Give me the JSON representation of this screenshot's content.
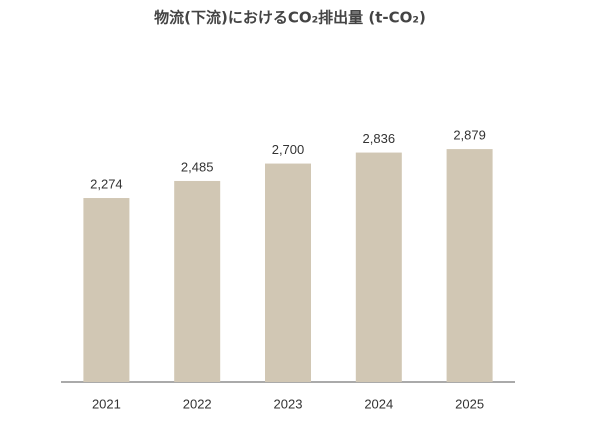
{
  "chart_data": {
    "type": "bar",
    "title": "物流(下流)におけるCO₂排出量 (t-CO₂)",
    "categories": [
      "2021",
      "2022",
      "2023",
      "2024",
      "2025"
    ],
    "values": [
      2274,
      2485,
      2700,
      2836,
      2879
    ],
    "value_labels": [
      "2,274",
      "2,485",
      "2,700",
      "2,836",
      "2,879"
    ],
    "color": "#d1c7b4"
  }
}
